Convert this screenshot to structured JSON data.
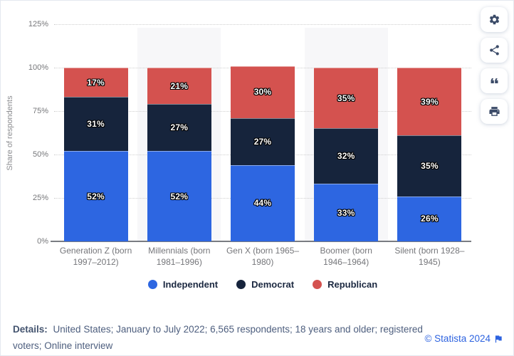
{
  "chart_data": {
    "type": "bar",
    "stacked": true,
    "ylabel": "Share of respondents",
    "ylim": [
      0,
      125
    ],
    "yticks": [
      "0%",
      "25%",
      "50%",
      "75%",
      "100%",
      "125%"
    ],
    "grid": true,
    "legend_position": "bottom",
    "band_color": "#f7f7f9",
    "categories": [
      "Generation Z (born 1997–2012)",
      "Millennials (born 1981–1996)",
      "Gen X (born 1965–1980)",
      "Boomer (born 1946–1964)",
      "Silent (born 1928–1945)"
    ],
    "series": [
      {
        "name": "Independent",
        "color": "#2d66e1",
        "values": [
          52,
          52,
          44,
          33,
          26
        ]
      },
      {
        "name": "Democrat",
        "color": "#16243c",
        "values": [
          31,
          27,
          27,
          32,
          35
        ]
      },
      {
        "name": "Republican",
        "color": "#d4524f",
        "values": [
          17,
          21,
          30,
          35,
          39
        ]
      }
    ],
    "label_format": "{v}%"
  },
  "toolbar": {
    "buttons": [
      {
        "name": "settings",
        "icon": "settings-icon"
      },
      {
        "name": "share",
        "icon": "share-icon"
      },
      {
        "name": "cite",
        "icon": "quote-icon"
      },
      {
        "name": "print",
        "icon": "print-icon"
      }
    ]
  },
  "footer": {
    "details_label": "Details:",
    "details_text": "United States; January to July 2022; 6,565 respondents; 18 years and older; registered voters; Online interview",
    "copyright": "© Statista 2024",
    "flag_icon": "flag-icon"
  }
}
